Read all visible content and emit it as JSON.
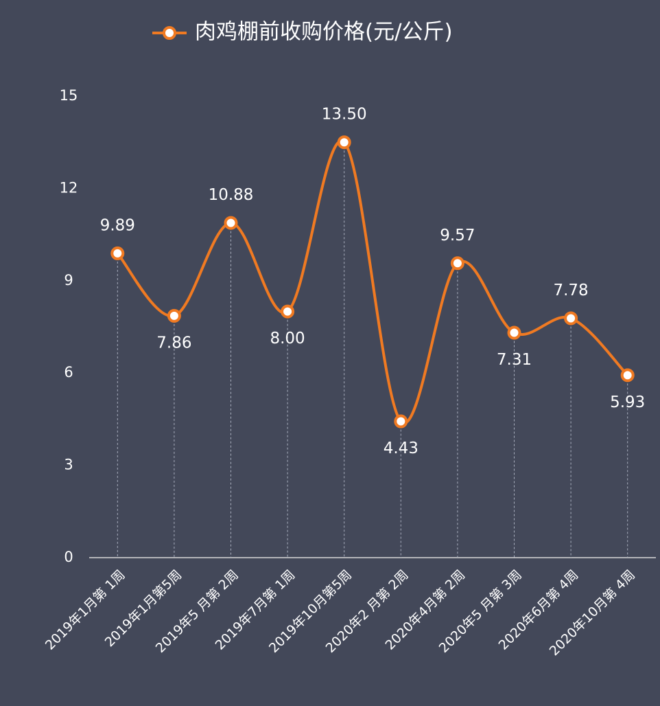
{
  "chart_data": {
    "type": "line",
    "categories": [
      "2019年1月第 1周",
      "2019年1月第5周",
      "2019年5 月第 2周",
      "2019年7月第 1周",
      "2019年10月第5周",
      "2020年2 月第 2周",
      "2020年4月第 2周",
      "2020年5 月第 3周",
      "2020年6月第 4周",
      "2020年10月第 4周"
    ],
    "series": [
      {
        "name": "肉鸡棚前收购价格(元/公斤)",
        "color": "#f07a22",
        "values": [
          9.89,
          7.86,
          10.88,
          8.0,
          13.5,
          4.43,
          9.57,
          7.31,
          7.78,
          5.93
        ],
        "value_labels": [
          "9.89",
          "7.86",
          "10.88",
          "8.00",
          "13.50",
          "4.43",
          "9.57",
          "7.31",
          "7.78",
          "5.93"
        ]
      }
    ],
    "ylim": [
      0,
      15
    ],
    "yticks": [
      0,
      3,
      6,
      9,
      12,
      15
    ],
    "grid": false,
    "smooth": true,
    "legend": "top"
  }
}
